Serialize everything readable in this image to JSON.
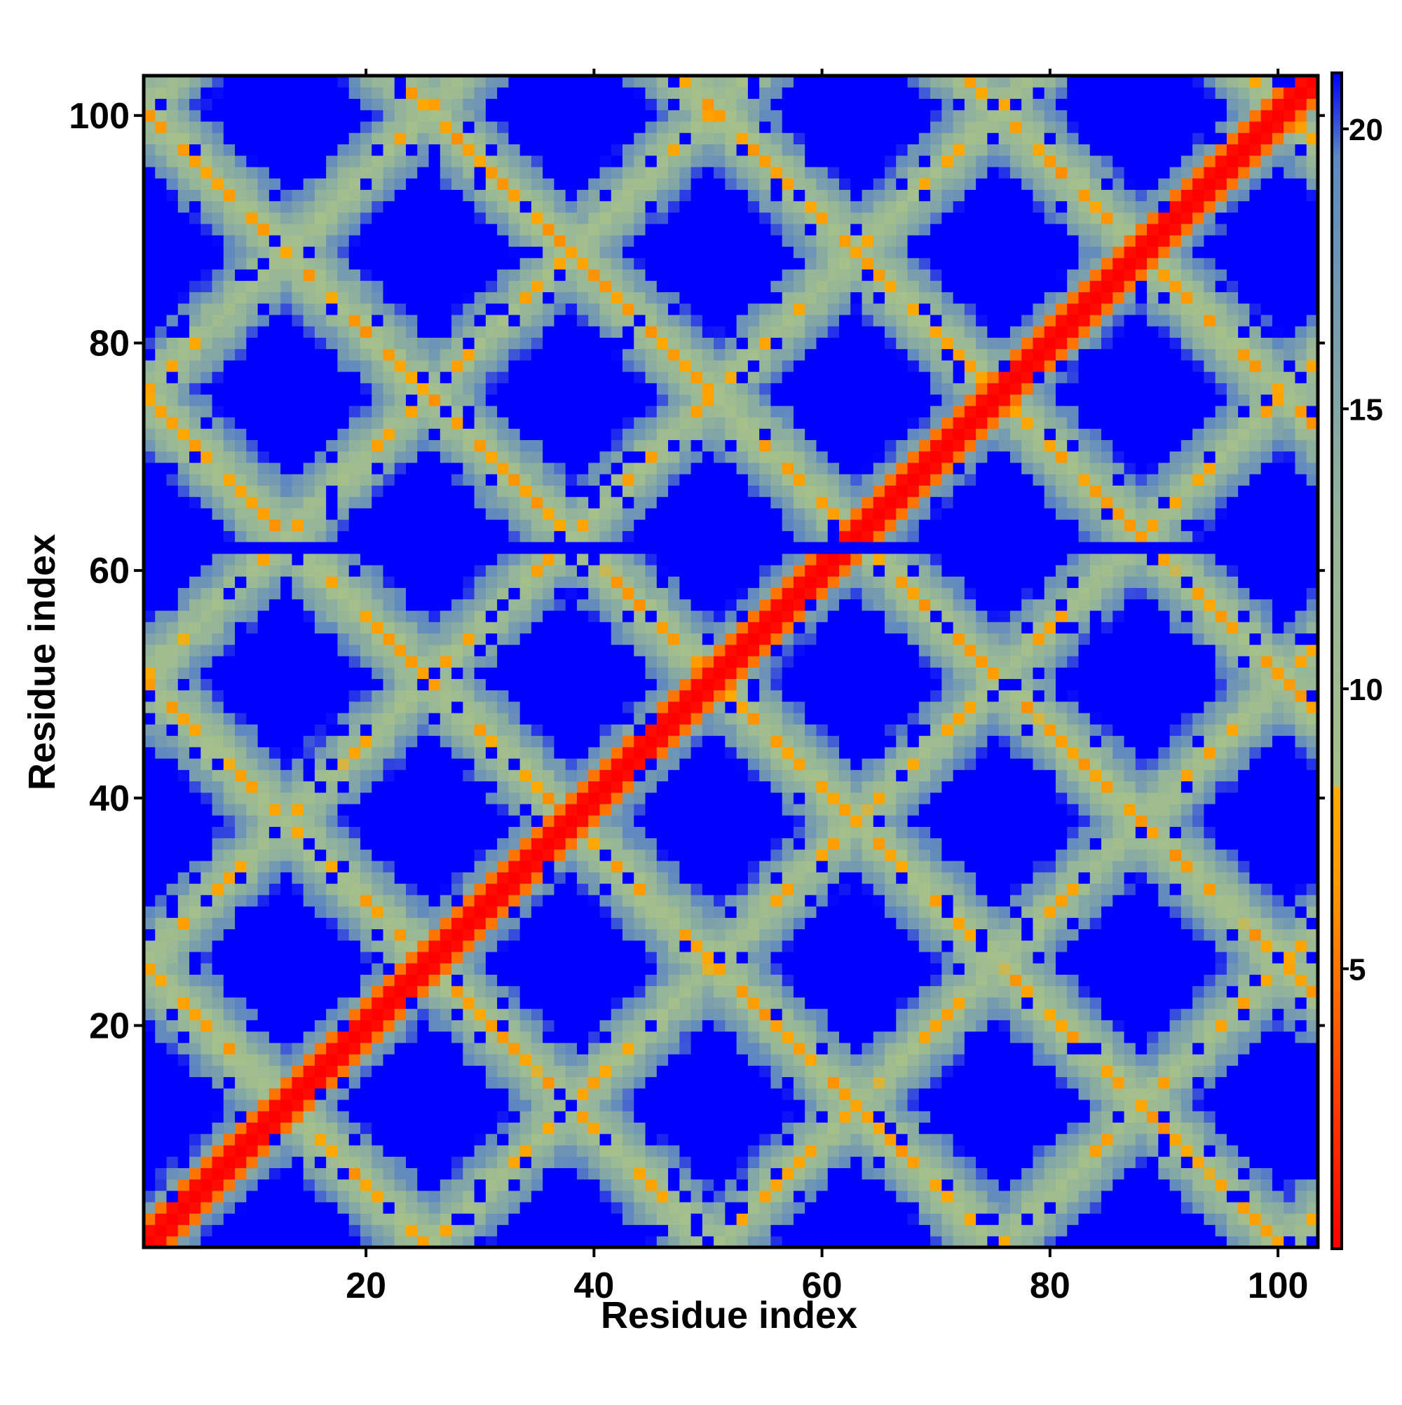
{
  "chart_data": {
    "type": "heatmap",
    "title": "",
    "xlabel": "Residue index",
    "ylabel": "Residue index",
    "x_range": [
      1,
      103
    ],
    "y_range": [
      1,
      103
    ],
    "n_residues": 103,
    "x_ticks": [
      20,
      40,
      60,
      80,
      100
    ],
    "y_ticks": [
      20,
      40,
      60,
      80,
      100
    ],
    "x_tick_labels": [
      "20",
      "40",
      "60",
      "80",
      "100"
    ],
    "y_tick_labels": [
      "20",
      "40",
      "60",
      "80",
      "100"
    ],
    "colorbar": {
      "range": [
        0,
        21
      ],
      "ticks": [
        5,
        10,
        15,
        20
      ],
      "tick_labels": [
        "5",
        "10",
        "15",
        "20"
      ],
      "stops": [
        {
          "value": 0,
          "color": "#ff0000"
        },
        {
          "value": 3,
          "color": "#ff4400"
        },
        {
          "value": 6.5,
          "color": "#ff9900"
        },
        {
          "value": 8.2,
          "color": "#ffaa00"
        },
        {
          "value": 8.3,
          "color": "#a6c08a"
        },
        {
          "value": 13,
          "color": "#93b49a"
        },
        {
          "value": 19.5,
          "color": "#5f88c0"
        },
        {
          "value": 21,
          "color": "#0000ff"
        }
      ]
    },
    "legend": "colorbar-right",
    "grid": false,
    "description_of_values": "Pairwise residue distance map: diagonal ~0, parallel and anti-parallel bands of contacts with small distances, far pairs saturated at max.",
    "missing_row": 62,
    "colors": {
      "far": "#0000ff",
      "mid": "#9ab893",
      "near": "#ff9900",
      "contact": "#ff0000"
    }
  }
}
